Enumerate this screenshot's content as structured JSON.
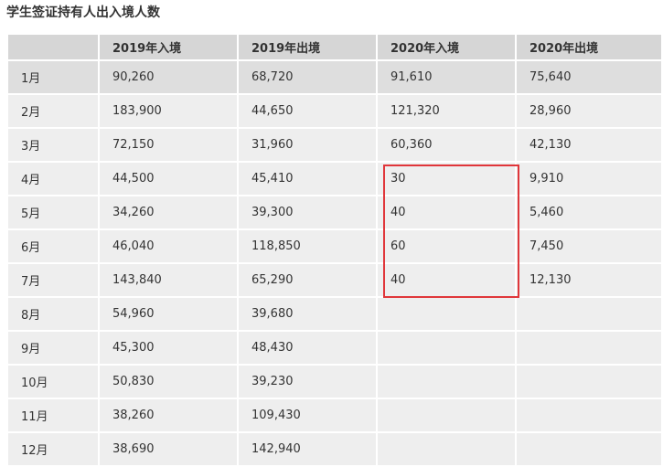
{
  "title": "学生签证持有人出入境人数",
  "table": {
    "headers": [
      "",
      "2019年入境",
      "2019年出境",
      "2020年入境",
      "2020年出境"
    ],
    "rows": [
      [
        "1月",
        "90,260",
        "68,720",
        "91,610",
        "75,640"
      ],
      [
        "2月",
        "183,900",
        "44,650",
        "121,320",
        "28,960"
      ],
      [
        "3月",
        "72,150",
        "31,960",
        "60,360",
        "42,130"
      ],
      [
        "4月",
        "44,500",
        "45,410",
        "30",
        "9,910"
      ],
      [
        "5月",
        "34,260",
        "39,300",
        "40",
        "5,460"
      ],
      [
        "6月",
        "46,040",
        "118,850",
        "60",
        "7,450"
      ],
      [
        "7月",
        "143,840",
        "65,290",
        "40",
        "12,130"
      ],
      [
        "8月",
        "54,960",
        "39,680",
        "",
        ""
      ],
      [
        "9月",
        "45,300",
        "48,430",
        "",
        ""
      ],
      [
        "10月",
        "50,830",
        "39,230",
        "",
        ""
      ],
      [
        "11月",
        "38,260",
        "109,430",
        "",
        ""
      ],
      [
        "12月",
        "38,690",
        "142,940",
        "",
        ""
      ]
    ]
  },
  "highlight": {
    "color": "#e0363a",
    "column": "2020年入境",
    "months": [
      "4月",
      "5月",
      "6月",
      "7月"
    ]
  }
}
